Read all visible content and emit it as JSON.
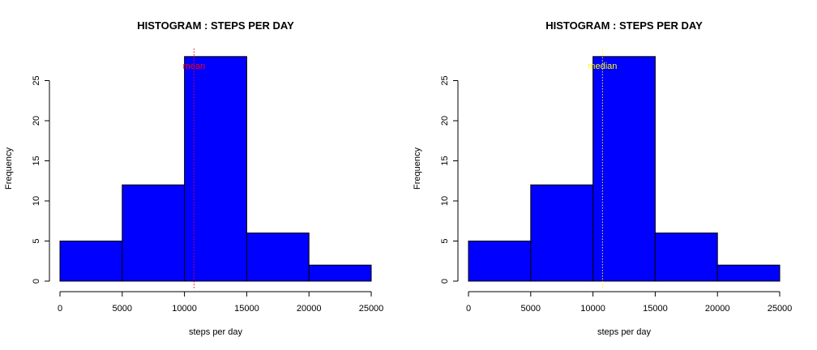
{
  "chart_data": [
    {
      "type": "bar",
      "title": "HISTOGRAM : STEPS PER DAY",
      "xlabel": "steps per day",
      "ylabel": "Frequency",
      "bins": [
        [
          0,
          5000
        ],
        [
          5000,
          10000
        ],
        [
          10000,
          15000
        ],
        [
          15000,
          20000
        ],
        [
          20000,
          25000
        ]
      ],
      "values": [
        5,
        12,
        28,
        6,
        2
      ],
      "xlim": [
        0,
        25000
      ],
      "ylim": [
        0,
        28
      ],
      "xticks": [
        "0",
        "5000",
        "10000",
        "15000",
        "20000",
        "25000"
      ],
      "yticks": [
        "0",
        "5",
        "10",
        "15",
        "20",
        "25"
      ],
      "bar_color": "#0000ff",
      "grid": false,
      "reference_line": {
        "label": "mean",
        "value": 10766,
        "color": "#ff0000",
        "style": "dotted"
      }
    },
    {
      "type": "bar",
      "title": "HISTOGRAM : STEPS PER DAY",
      "xlabel": "steps per day",
      "ylabel": "Frequency",
      "bins": [
        [
          0,
          5000
        ],
        [
          5000,
          10000
        ],
        [
          10000,
          15000
        ],
        [
          15000,
          20000
        ],
        [
          20000,
          25000
        ]
      ],
      "values": [
        5,
        12,
        28,
        6,
        2
      ],
      "xlim": [
        0,
        25000
      ],
      "ylim": [
        0,
        28
      ],
      "xticks": [
        "0",
        "5000",
        "10000",
        "15000",
        "20000",
        "25000"
      ],
      "yticks": [
        "0",
        "5",
        "10",
        "15",
        "20",
        "25"
      ],
      "bar_color": "#0000ff",
      "grid": false,
      "reference_line": {
        "label": "median",
        "value": 10765,
        "color": "#ffff00",
        "style": "dotted"
      }
    }
  ]
}
